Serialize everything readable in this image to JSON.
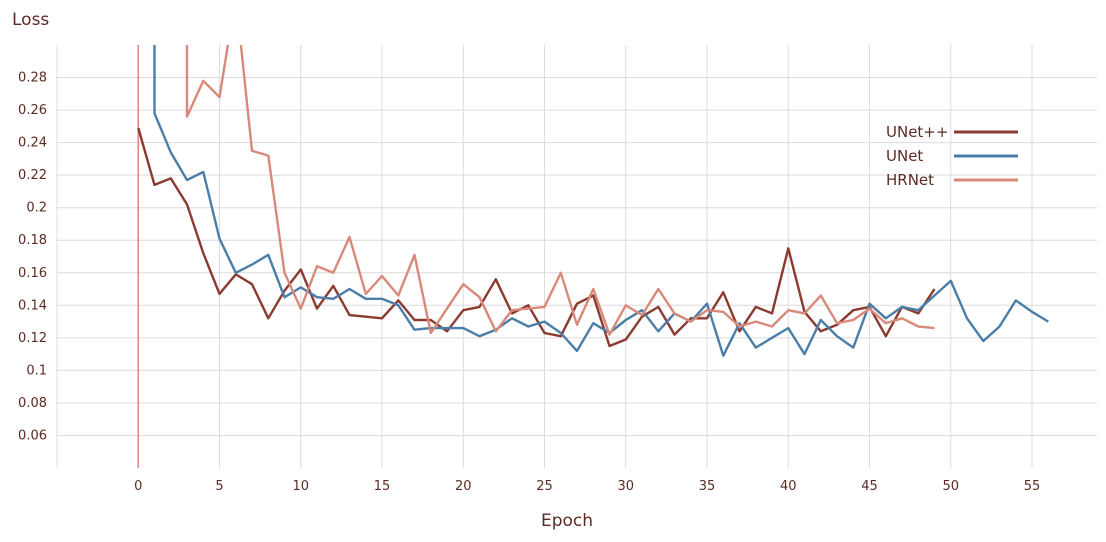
{
  "chart_data": {
    "type": "line",
    "title": "",
    "xlabel": "Epoch",
    "ylabel": "Loss",
    "xlim": [
      -5,
      59
    ],
    "ylim": [
      0.04,
      0.3
    ],
    "x_ticks": [
      0,
      5,
      10,
      15,
      20,
      25,
      30,
      35,
      40,
      45,
      50,
      55
    ],
    "y_ticks": [
      0.06,
      0.08,
      0.1,
      0.12,
      0.14,
      0.16,
      0.18,
      0.2,
      0.22,
      0.24,
      0.26,
      0.28
    ],
    "grid": true,
    "legend_position": "right",
    "series": [
      {
        "name": "UNet++",
        "color": "#8b3a2f",
        "x": [
          0,
          1,
          2,
          3,
          4,
          5,
          6,
          7,
          8,
          9,
          10,
          11,
          12,
          13,
          14,
          15,
          16,
          17,
          18,
          19,
          20,
          21,
          22,
          23,
          24,
          25,
          26,
          27,
          28,
          29,
          30,
          31,
          32,
          33,
          34,
          35,
          36,
          37,
          38,
          39,
          40,
          41,
          42,
          43,
          44,
          45,
          46,
          47,
          48,
          49
        ],
        "y": [
          0.249,
          0.214,
          0.218,
          0.202,
          0.172,
          0.147,
          0.159,
          0.153,
          0.132,
          0.149,
          0.162,
          0.138,
          0.152,
          0.134,
          0.133,
          0.132,
          0.143,
          0.131,
          0.131,
          0.124,
          0.137,
          0.139,
          0.156,
          0.135,
          0.14,
          0.123,
          0.121,
          0.141,
          0.146,
          0.115,
          0.119,
          0.133,
          0.139,
          0.122,
          0.132,
          0.132,
          0.148,
          0.124,
          0.139,
          0.135,
          0.175,
          0.136,
          0.124,
          0.128,
          0.137,
          0.139,
          0.121,
          0.139,
          0.135,
          0.15
        ]
      },
      {
        "name": "UNet",
        "color": "#4a7ea8",
        "x": [
          1,
          2,
          3,
          4,
          5,
          6,
          7,
          8,
          9,
          10,
          11,
          12,
          13,
          14,
          15,
          16,
          17,
          18,
          19,
          20,
          21,
          22,
          23,
          24,
          25,
          26,
          27,
          28,
          29,
          30,
          31,
          32,
          33,
          34,
          35,
          36,
          37,
          38,
          39,
          40,
          41,
          42,
          43,
          44,
          45,
          46,
          47,
          48,
          49,
          50,
          51,
          52,
          53,
          54,
          55,
          56
        ],
        "y": [
          0.258,
          0.234,
          0.217,
          0.222,
          0.181,
          0.16,
          0.165,
          0.171,
          0.145,
          0.151,
          0.145,
          0.144,
          0.15,
          0.144,
          0.144,
          0.14,
          0.125,
          0.126,
          0.126,
          0.126,
          0.121,
          0.125,
          0.132,
          0.127,
          0.13,
          0.123,
          0.112,
          0.129,
          0.123,
          0.131,
          0.137,
          0.124,
          0.135,
          0.13,
          0.141,
          0.109,
          0.129,
          0.114,
          0.12,
          0.126,
          0.11,
          0.131,
          0.121,
          0.114,
          0.141,
          0.132,
          0.139,
          0.137,
          0.146,
          0.155,
          0.132,
          0.118,
          0.127,
          0.143,
          0.136,
          0.13
        ]
      },
      {
        "name": "HRNet",
        "color": "#d9897a",
        "x": [
          3,
          4,
          5,
          6,
          7,
          8,
          9,
          10,
          11,
          12,
          13,
          14,
          15,
          16,
          17,
          18,
          19,
          20,
          21,
          22,
          23,
          24,
          25,
          26,
          27,
          28,
          29,
          30,
          31,
          32,
          33,
          34,
          35,
          36,
          37,
          38,
          39,
          40,
          41,
          42,
          43,
          44,
          45,
          46,
          47,
          48,
          49
        ],
        "y": [
          0.256,
          0.278,
          0.268,
          0.33,
          0.235,
          0.232,
          0.16,
          0.138,
          0.164,
          0.16,
          0.182,
          0.147,
          0.158,
          0.146,
          0.171,
          0.123,
          0.138,
          0.153,
          0.145,
          0.124,
          0.137,
          0.138,
          0.139,
          0.16,
          0.128,
          0.15,
          0.122,
          0.14,
          0.134,
          0.15,
          0.135,
          0.13,
          0.137,
          0.136,
          0.127,
          0.13,
          0.127,
          0.137,
          0.135,
          0.146,
          0.129,
          0.131,
          0.138,
          0.129,
          0.132,
          0.127,
          0.126
        ]
      }
    ]
  }
}
